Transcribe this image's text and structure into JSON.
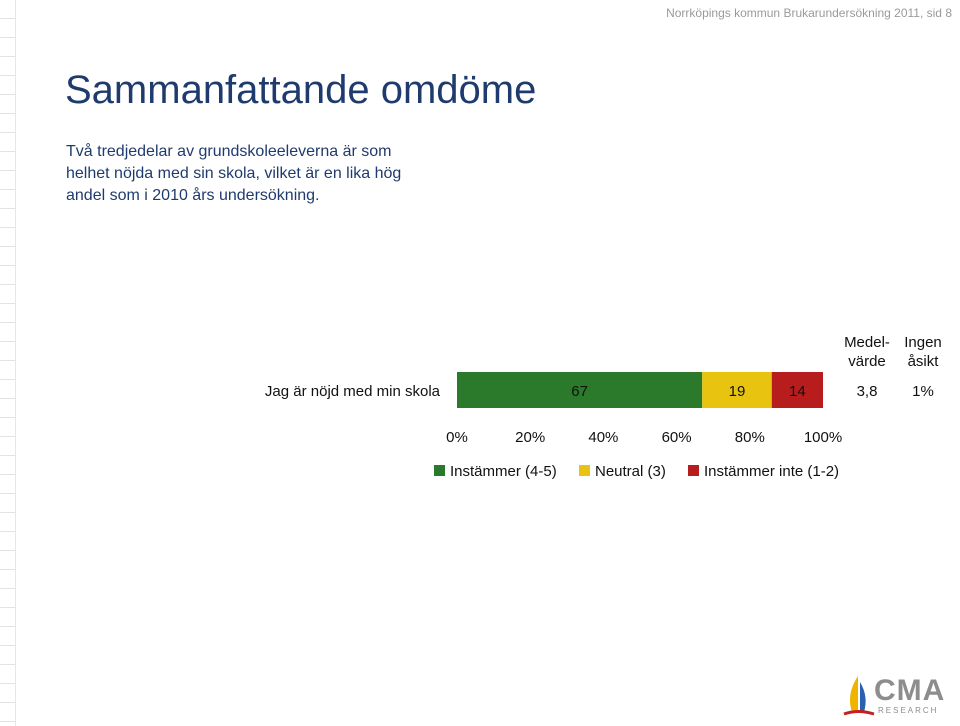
{
  "header": {
    "source_note": "Norrköpings kommun Brukarundersökning 2011,  sid 8"
  },
  "title": "Sammanfattande omdöme",
  "summary_lines": [
    "Två tredjedelar av grundskoleeleverna är som",
    "helhet nöjda med sin skola, vilket är en lika hög",
    "andel som i 2010 års undersökning."
  ],
  "logo": {
    "name": "CMA",
    "subtitle": "RESEARCH"
  },
  "colors": {
    "agree": "#2b7a2b",
    "neutral": "#e8c410",
    "disagree": "#b81d1d",
    "title": "#1f3b6e"
  },
  "chart_data": {
    "type": "bar",
    "orientation": "horizontal",
    "stacked": true,
    "categories": [
      "Jag är nöjd med min skola"
    ],
    "series": [
      {
        "name": "Instämmer (4-5)",
        "values": [
          67
        ],
        "color": "#2b7a2b"
      },
      {
        "name": "Neutral (3)",
        "values": [
          19
        ],
        "color": "#e8c410"
      },
      {
        "name": "Instämmer inte (1-2)",
        "values": [
          14
        ],
        "color": "#b81d1d"
      }
    ],
    "xlim": [
      0,
      100
    ],
    "x_ticks": [
      "0%",
      "20%",
      "40%",
      "60%",
      "80%",
      "100%"
    ],
    "extra_columns": [
      {
        "header": [
          "Medel-",
          "värde"
        ],
        "values": [
          "3,8"
        ]
      },
      {
        "header": [
          "Ingen",
          "åsikt"
        ],
        "values": [
          "1%"
        ]
      }
    ],
    "legend_position": "bottom",
    "grid": false
  }
}
